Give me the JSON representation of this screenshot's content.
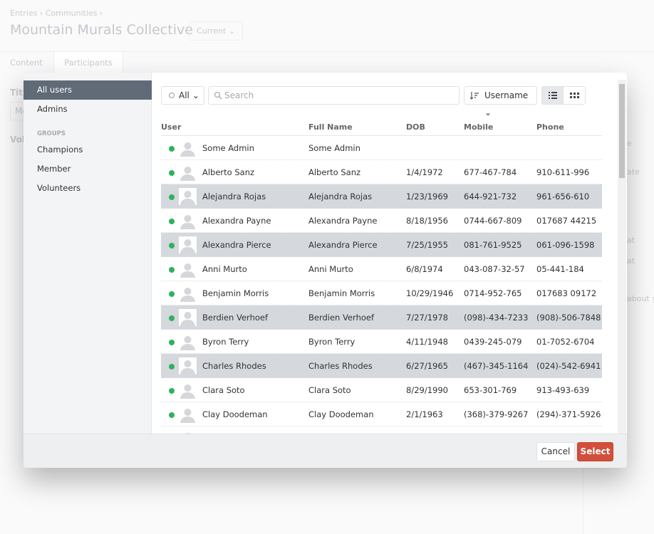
{
  "breadcrumb": [
    "Entries",
    "Communities"
  ],
  "page_title": "Mountain Murals Collective",
  "status_button": "Current",
  "tabs": [
    "Content",
    "Participants"
  ],
  "background_fragments": {
    "left": [
      "Titl",
      "Mo",
      "Vol"
    ],
    "right": [
      "e",
      "ate",
      "at",
      "at",
      "about yo"
    ]
  },
  "modal": {
    "sidebar": {
      "items": [
        "All users",
        "Admins"
      ],
      "active": 0,
      "groups_heading": "GROUPS",
      "groups": [
        "Champions",
        "Member",
        "Volunteers"
      ]
    },
    "toolbar": {
      "filter": "All",
      "search_placeholder": "Search",
      "sort": "Username"
    },
    "table": {
      "columns": [
        "User",
        "Full Name",
        "DOB",
        "Mobile",
        "Phone"
      ],
      "rows": [
        {
          "username": "Some Admin",
          "full_name": "Some Admin",
          "dob": null,
          "mobile": null,
          "phone": null,
          "selected": false
        },
        {
          "username": "Alberto Sanz",
          "full_name": "Alberto Sanz",
          "dob": "1/4/1972",
          "mobile": "677-467-784",
          "phone": "910-611-996",
          "selected": false
        },
        {
          "username": "Alejandra Rojas",
          "full_name": "Alejandra Rojas",
          "dob": "1/23/1969",
          "mobile": "644-921-732",
          "phone": "961-656-610",
          "selected": true
        },
        {
          "username": "Alexandra Payne",
          "full_name": "Alexandra Payne",
          "dob": "8/18/1956",
          "mobile": "0744-667-809",
          "phone": "017687 44215",
          "selected": false
        },
        {
          "username": "Alexandra Pierce",
          "full_name": "Alexandra Pierce",
          "dob": "7/25/1955",
          "mobile": "081-761-9525",
          "phone": "061-096-1598",
          "selected": true
        },
        {
          "username": "Anni Murto",
          "full_name": "Anni Murto",
          "dob": "6/8/1974",
          "mobile": "043-087-32-57",
          "phone": "05-441-184",
          "selected": false
        },
        {
          "username": "Benjamin Morris",
          "full_name": "Benjamin Morris",
          "dob": "10/29/1946",
          "mobile": "0714-952-765",
          "phone": "017683 09172",
          "selected": false
        },
        {
          "username": "Berdien Verhoef",
          "full_name": "Berdien Verhoef",
          "dob": "7/27/1978",
          "mobile": "(098)-434-7233",
          "phone": "(908)-506-7848",
          "selected": true
        },
        {
          "username": "Byron Terry",
          "full_name": "Byron Terry",
          "dob": "4/11/1948",
          "mobile": "0439-245-079",
          "phone": "01-7052-6704",
          "selected": false
        },
        {
          "username": "Charles Rhodes",
          "full_name": "Charles Rhodes",
          "dob": "6/27/1965",
          "mobile": "(467)-345-1164",
          "phone": "(024)-542-6941",
          "selected": true
        },
        {
          "username": "Clara Soto",
          "full_name": "Clara Soto",
          "dob": "8/29/1990",
          "mobile": "653-301-769",
          "phone": "913-493-639",
          "selected": false
        },
        {
          "username": "Clay Doodeman",
          "full_name": "Clay Doodeman",
          "dob": "2/1/1963",
          "mobile": "(368)-379-9267",
          "phone": "(294)-371-5926",
          "selected": false
        }
      ]
    },
    "footer": {
      "cancel": "Cancel",
      "select": "Select"
    }
  }
}
